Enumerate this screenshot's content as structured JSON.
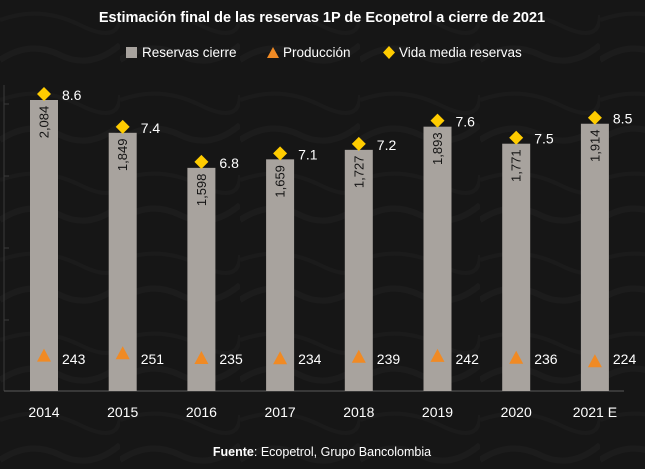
{
  "chart_data": {
    "type": "bar",
    "title": "Estimación final de las reservas 1P de Ecopetrol a cierre de 2021",
    "categories": [
      "2014",
      "2015",
      "2016",
      "2017",
      "2018",
      "2019",
      "2020",
      "2021 E"
    ],
    "series": [
      {
        "name": "Reservas cierre",
        "kind": "bar",
        "values": [
          2084,
          1849,
          1598,
          1659,
          1727,
          1893,
          1771,
          1914
        ],
        "labels": [
          "2,084",
          "1,849",
          "1,598",
          "1,659",
          "1,727",
          "1,893",
          "1,771",
          "1,914"
        ],
        "color": "#a8a39e"
      },
      {
        "name": "Producción",
        "kind": "triangle-marker",
        "values": [
          243,
          251,
          235,
          234,
          239,
          242,
          236,
          224
        ],
        "labels": [
          "243",
          "251",
          "235",
          "234",
          "239",
          "242",
          "236",
          "224"
        ],
        "color": "#f08a24"
      },
      {
        "name": "Vida media reservas",
        "kind": "diamond-marker",
        "values": [
          8.6,
          7.4,
          6.8,
          7.1,
          7.2,
          7.6,
          7.5,
          8.5
        ],
        "labels": [
          "8.6",
          "7.4",
          "6.8",
          "7.1",
          "7.2",
          "7.6",
          "7.5",
          "8.5"
        ],
        "color": "#ffcc00"
      }
    ],
    "ylim": [
      0,
      2300
    ],
    "xlabel": "",
    "ylabel": "",
    "legend": "top"
  },
  "source": {
    "label": "Fuente",
    "text": ": Ecopetrol, Grupo Bancolombia"
  }
}
